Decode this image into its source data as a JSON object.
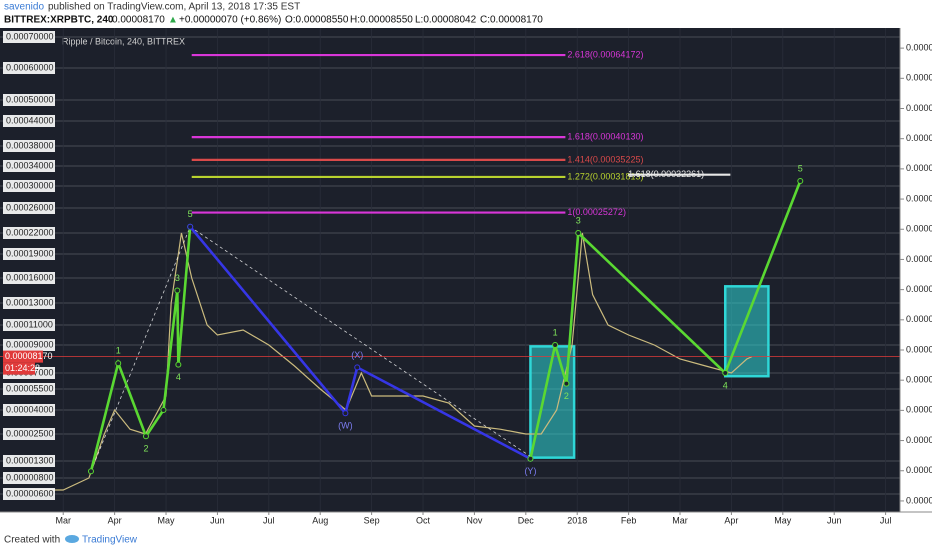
{
  "header": {
    "author": "savenido",
    "published": "published on TradingView.com, April 13, 2018 17:35 EST",
    "symbol": "BITTREX:XRPBTC, 240",
    "price": "0.00008170",
    "arrow": "▲",
    "change": "+0.00000070 (+0.86%)",
    "open": "O:0.00008550",
    "high": "H:0.00008550",
    "low": "L:0.00008042",
    "close": "C:0.00008170"
  },
  "chart_data": {
    "type": "line",
    "title": "Ripple / Bitcoin, 240, BITTREX",
    "xlim": [
      -1.23,
      16.28
    ],
    "ylim": [
      3.8e-06,
      0.000723
    ],
    "xticks": [
      {
        "value": 0,
        "label": "Mar"
      },
      {
        "value": 1,
        "label": "Apr"
      },
      {
        "value": 2,
        "label": "May"
      },
      {
        "value": 3,
        "label": "Jun"
      },
      {
        "value": 4,
        "label": "Jul"
      },
      {
        "value": 5,
        "label": "Aug"
      },
      {
        "value": 6,
        "label": "Sep"
      },
      {
        "value": 7,
        "label": "Oct"
      },
      {
        "value": 8,
        "label": "Nov"
      },
      {
        "value": 9,
        "label": "Dec"
      },
      {
        "value": 10,
        "label": "2018"
      },
      {
        "value": 11,
        "label": "Feb"
      },
      {
        "value": 12,
        "label": "Mar"
      },
      {
        "value": 13,
        "label": "Apr"
      },
      {
        "value": 14,
        "label": "May"
      },
      {
        "value": 15,
        "label": "Jun"
      },
      {
        "value": 16,
        "label": "Jul"
      }
    ],
    "yticks": [
      {
        "value": 0.0007,
        "label": "0.00070000"
      },
      {
        "value": 0.0006,
        "label": "0.00060000"
      },
      {
        "value": 0.0005,
        "label": "0.00050000"
      },
      {
        "value": 0.00044,
        "label": "0.00044000"
      },
      {
        "value": 0.00038,
        "label": "0.00038000"
      },
      {
        "value": 0.00034,
        "label": "0.00034000"
      },
      {
        "value": 0.0003,
        "label": "0.00030000"
      },
      {
        "value": 0.00026,
        "label": "0.00026000"
      },
      {
        "value": 0.00022,
        "label": "0.00022000"
      },
      {
        "value": 0.00019,
        "label": "0.00019000"
      },
      {
        "value": 0.00016,
        "label": "0.00016000"
      },
      {
        "value": 0.00013,
        "label": "0.00013000"
      },
      {
        "value": 0.00011,
        "label": "0.00011000"
      },
      {
        "value": 9e-05,
        "label": "0.00009000"
      },
      {
        "value": 7e-05,
        "label": "0.00007000"
      },
      {
        "value": 5.5e-05,
        "label": "0.00005500"
      },
      {
        "value": 4e-05,
        "label": "0.00004000"
      },
      {
        "value": 2.5e-05,
        "label": "0.00002500"
      },
      {
        "value": 1.3e-05,
        "label": "0.00001300"
      },
      {
        "value": 8e-06,
        "label": "0.00000800"
      },
      {
        "value": 6e-06,
        "label": "0.00000600"
      }
    ],
    "y2lim": [
      -1.1e-06,
      4.7e-05
    ],
    "y2ticks": [
      {
        "value": 4.5e-05,
        "label": "0.0000"
      },
      {
        "value": 4.2e-05,
        "label": "0.0000"
      },
      {
        "value": 3.9e-05,
        "label": "0.0000"
      },
      {
        "value": 3.6e-05,
        "label": "0.0000"
      },
      {
        "value": 3.3e-05,
        "label": "0.0000"
      },
      {
        "value": 3e-05,
        "label": "0.0000"
      },
      {
        "value": 2.7e-05,
        "label": "0.0000"
      },
      {
        "value": 2.4e-05,
        "label": "0.0000"
      },
      {
        "value": 2.1e-05,
        "label": "0.0000"
      },
      {
        "value": 1.8e-05,
        "label": "0.0000"
      },
      {
        "value": 1.5e-05,
        "label": "0.0000"
      },
      {
        "value": 1.2e-05,
        "label": "0.0000"
      },
      {
        "value": 9e-06,
        "label": "0.0000"
      },
      {
        "value": 6e-06,
        "label": "0.0000"
      },
      {
        "value": 3e-06,
        "label": "0.0000"
      },
      {
        "value": 0,
        "label": "0.0000"
      }
    ],
    "grid": true,
    "series": [
      {
        "color": "#cbbb7e",
        "x": [
          -0.64,
          0,
          0.5,
          0.8,
          1.0,
          1.3,
          1.6,
          2.0,
          2.1,
          2.3,
          2.5,
          2.8,
          3.0,
          3.5,
          4.0,
          4.5,
          5.0,
          5.5,
          5.8,
          6.0,
          7.0,
          7.5,
          8.0,
          8.5,
          9.0,
          9.3,
          9.6,
          9.9,
          10.1,
          10.3,
          10.6,
          11.0,
          11.5,
          12.0,
          12.5,
          13.0,
          13.3,
          13.4
        ],
        "values": [
          6.5e-06,
          6.5e-06,
          8e-06,
          2.5e-05,
          4e-05,
          2.8e-05,
          2.5e-05,
          5e-05,
          0.00013,
          0.00022,
          0.00016,
          0.00011,
          0.0001,
          0.000105,
          9e-05,
          7.5e-05,
          5.5e-05,
          4e-05,
          7e-05,
          5e-05,
          5e-05,
          4.5e-05,
          3e-05,
          2.8e-05,
          2.5e-05,
          2.5e-05,
          4e-05,
          9e-05,
          0.00022,
          0.00014,
          0.00011,
          0.0001,
          9e-05,
          8e-05,
          7.5e-05,
          7e-05,
          8e-05,
          8.17e-05
        ]
      }
    ],
    "last_price": {
      "value": 8.17e-05,
      "label": "0.00008170",
      "countdown": "01:24:28",
      "color": "#e03a3a"
    },
    "fib_levels": [
      {
        "label": "2.618(0.00064172)",
        "value": 0.00064172,
        "x": [
          2.5,
          9.77
        ],
        "color": "#d936d9"
      },
      {
        "label": "1.618(0.00040130)",
        "value": 0.0004013,
        "x": [
          2.5,
          9.77
        ],
        "color": "#d936d9"
      },
      {
        "label": "1.414(0.00035225)",
        "value": 0.00035225,
        "x": [
          2.5,
          9.77
        ],
        "color": "#d94a4a"
      },
      {
        "label": "1.272(0.00031813)",
        "value": 0.00031813,
        "x": [
          2.5,
          9.77
        ],
        "color": "#b8d22e"
      },
      {
        "label": "1(0.00025272)",
        "value": 0.00025272,
        "x": [
          2.5,
          9.77
        ],
        "color": "#d936d9"
      },
      {
        "label": "1.618(0.00032261)",
        "value": 0.00032261,
        "x": [
          10.99,
          12.98
        ],
        "color": "#e8e8e8"
      }
    ],
    "waves": [
      {
        "color": "#ffffff",
        "dashed": true,
        "x": [
          0.54,
          2.47
        ],
        "values": [
          1e-05,
          0.00023
        ]
      },
      {
        "color": "#ffffff",
        "dashed": true,
        "x": [
          2.47,
          9.09
        ],
        "values": [
          0.00023,
          1.5e-05
        ]
      },
      {
        "color": "#5ad832",
        "x": [
          0.54,
          1.07,
          1.61,
          1.95,
          2.22,
          2.24,
          2.47
        ],
        "values": [
          1e-05,
          7.7e-05,
          2.4e-05,
          4e-05,
          0.000145,
          7.6e-05,
          0.00023
        ],
        "labels": [
          null,
          "1",
          "2",
          null,
          "3",
          "4",
          "5"
        ],
        "label_color": "#7fe35a"
      },
      {
        "color": "#3636e6",
        "x": [
          2.47,
          5.49,
          5.72,
          9.09
        ],
        "values": [
          0.00023,
          3.8e-05,
          7.4e-05,
          1.4e-05
        ],
        "labels": [
          null,
          "(W)",
          "(X)",
          "(Y)"
        ],
        "label_color": "#7d7df2"
      },
      {
        "color": "#5ad832",
        "x": [
          9.09,
          9.57,
          9.79,
          10.02,
          12.88,
          14.34
        ],
        "values": [
          1.4e-05,
          9e-05,
          6e-05,
          0.00022,
          7e-05,
          0.00031
        ],
        "labels": [
          null,
          "1",
          "2",
          "3",
          "4",
          "5"
        ],
        "label_color": "#7fe35a"
      }
    ],
    "zones": [
      {
        "x": [
          9.09,
          9.94
        ],
        "values": [
          1.45e-05,
          8.9e-05
        ],
        "color": "#2fd7d7"
      },
      {
        "x": [
          12.88,
          13.72
        ],
        "values": [
          6.7e-05,
          0.00015
        ],
        "color": "#2fd7d7"
      }
    ]
  },
  "footer": {
    "created": "Created with",
    "brand": "TradingView"
  }
}
